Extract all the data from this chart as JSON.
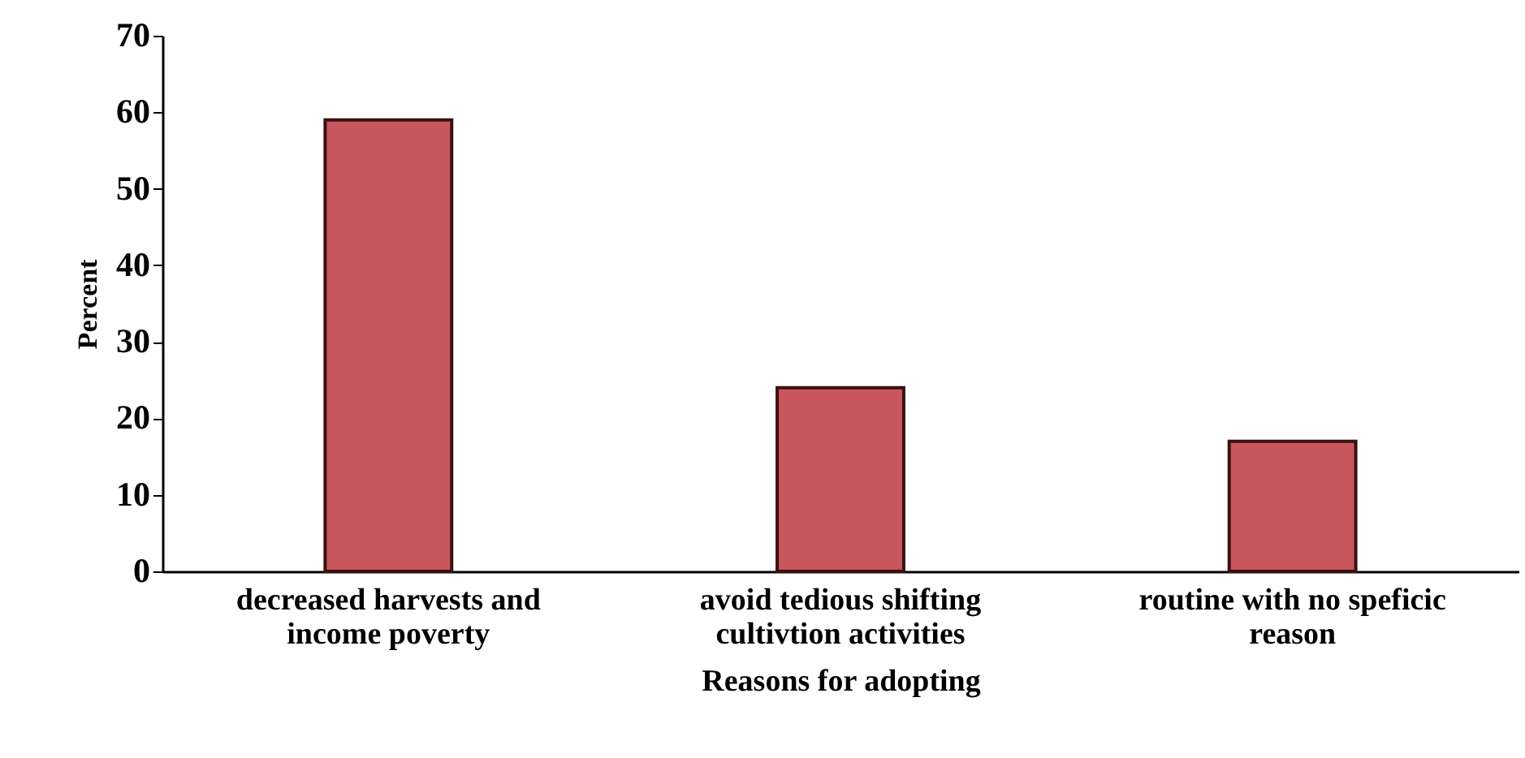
{
  "chart_data": {
    "type": "bar",
    "xlabel": "Reasons for adopting",
    "ylabel": "Percent",
    "categories": [
      "decreased harvests and income poverty",
      "avoid tedious shifting cultivtion activities",
      "routine with no speficic reason"
    ],
    "values": [
      59,
      24,
      17
    ],
    "color": "#c8565e",
    "ylim": [
      0,
      70
    ],
    "yticks": [
      0,
      10,
      20,
      30,
      40,
      50,
      60,
      70
    ],
    "grid": false
  }
}
